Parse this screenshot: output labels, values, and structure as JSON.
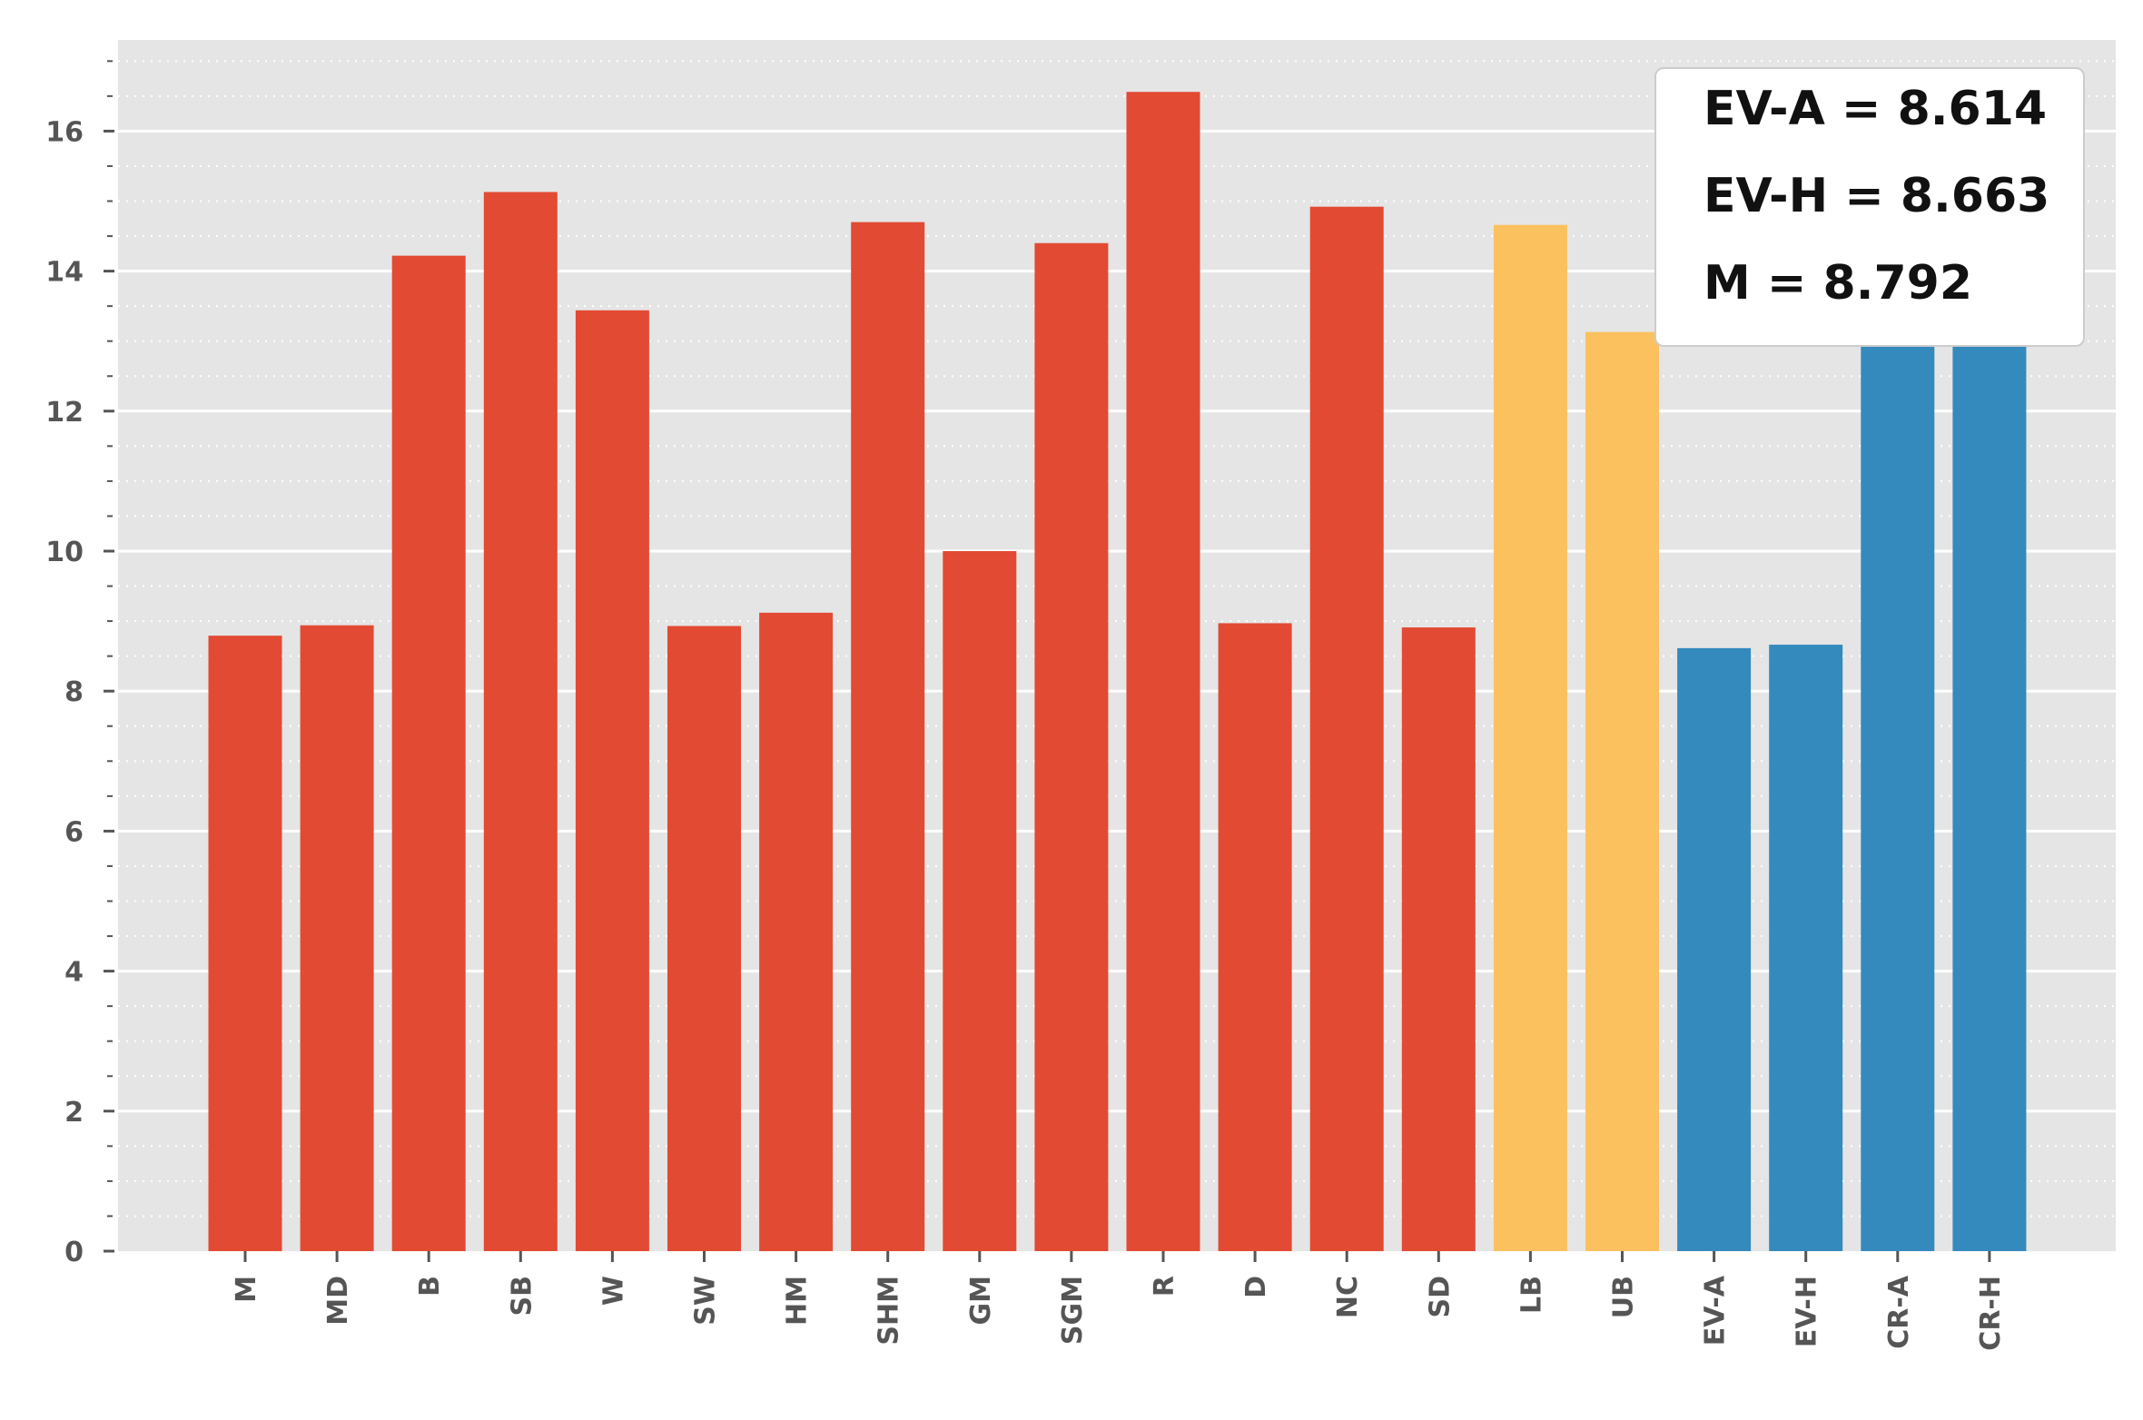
{
  "chart_data": {
    "type": "bar",
    "title": "",
    "xlabel": "",
    "ylabel": "",
    "categories": [
      "M",
      "MD",
      "B",
      "SB",
      "W",
      "SW",
      "HM",
      "SHM",
      "GM",
      "SGM",
      "R",
      "D",
      "NC",
      "SD",
      "LB",
      "UB",
      "EV-A",
      "EV-H",
      "CR-A",
      "CR-H"
    ],
    "values": [
      8.792,
      8.94,
      14.22,
      15.13,
      13.44,
      8.93,
      9.12,
      14.7,
      10.0,
      14.4,
      16.56,
      8.97,
      14.92,
      8.91,
      14.66,
      13.13,
      8.614,
      8.663,
      13.5,
      13.5
    ],
    "bar_colors": [
      "#E24A33",
      "#E24A33",
      "#E24A33",
      "#E24A33",
      "#E24A33",
      "#E24A33",
      "#E24A33",
      "#E24A33",
      "#E24A33",
      "#E24A33",
      "#E24A33",
      "#E24A33",
      "#E24A33",
      "#E24A33",
      "#FBC15E",
      "#FBC15E",
      "#348ABD",
      "#348ABD",
      "#348ABD",
      "#348ABD"
    ],
    "ylim": [
      0,
      17.3
    ],
    "yticks": [
      0,
      2,
      4,
      6,
      8,
      10,
      12,
      14,
      16
    ],
    "grid": true,
    "legend_placement": "top-right",
    "annotation_lines": [
      "EV-A = 8.614",
      "EV-H = 8.663",
      "M = 8.792"
    ]
  },
  "colors": {
    "plot_background": "#E5E5E5",
    "grid": "#FFFFFF",
    "red": "#E24A33",
    "yellow": "#FBC15E",
    "blue": "#348ABD"
  }
}
